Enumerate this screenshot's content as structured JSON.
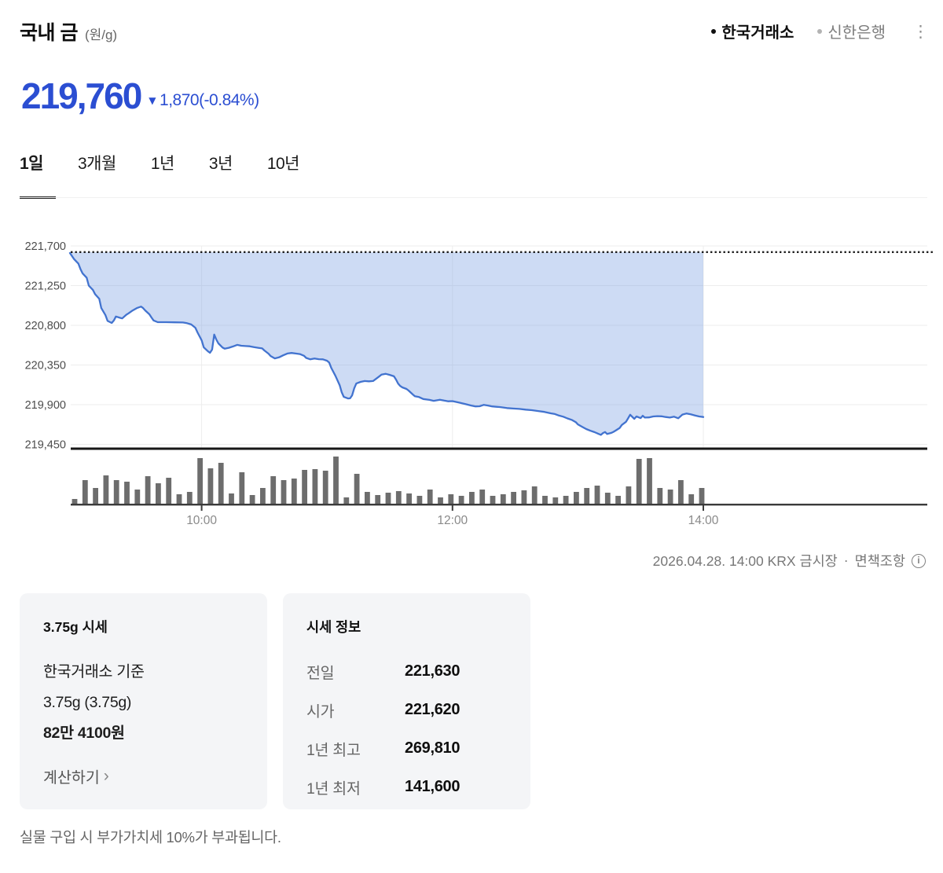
{
  "header": {
    "title": "국내 금",
    "unit": "(원/g)",
    "sources": [
      {
        "label": "한국거래소",
        "active": true
      },
      {
        "label": "신한은행",
        "active": false
      }
    ],
    "menu_icon": "⋮"
  },
  "price": {
    "current": "219,760",
    "change_arrow": "▼",
    "change_text": "1,870(-0.84%)",
    "down_color": "#2b4ed2"
  },
  "period_tabs": [
    {
      "label": "1일",
      "active": true
    },
    {
      "label": "3개월",
      "active": false
    },
    {
      "label": "1년",
      "active": false
    },
    {
      "label": "3년",
      "active": false
    },
    {
      "label": "10년",
      "active": false
    }
  ],
  "chart_meta": {
    "timestamp_line": "2026.04.28. 14:00 KRX 금시장",
    "separator": "·",
    "disclaimer_link": "면책조항",
    "info_icon": "i"
  },
  "chart_data": {
    "type": "area",
    "title": "국내 금 1일 시세 (원/g)",
    "prev_close": 221630,
    "open": 221620,
    "current": 219760,
    "y_ticks": [
      221700,
      221250,
      220800,
      220350,
      219900,
      219450
    ],
    "y_tick_labels": [
      "221,700",
      "221,250",
      "220,800",
      "220,350",
      "219,900",
      "219,450"
    ],
    "x_ticks": [
      {
        "min": 60,
        "label": "10:00"
      },
      {
        "min": 180,
        "label": "12:00"
      },
      {
        "min": 300,
        "label": "14:00"
      }
    ],
    "x_axis_note": "minutes since 09:00, data ends 14:00",
    "colors": {
      "line": "#4273cf",
      "fill": "rgba(131,166,227,0.40)",
      "dotted": "#1f1f1f",
      "grid": "#ececec",
      "vgrid": "#ededed",
      "axis": "#161616",
      "volume": "#6d6d6d",
      "volume_base": "#3a3a3a",
      "x_label": "#8a8a8a",
      "y_label": "#4c4c4c"
    },
    "points": [
      [
        -3,
        221620
      ],
      [
        -1,
        221550
      ],
      [
        1,
        221500
      ],
      [
        2,
        221440
      ],
      [
        3,
        221390
      ],
      [
        5,
        221340
      ],
      [
        6,
        221250
      ],
      [
        8,
        221200
      ],
      [
        9,
        221155
      ],
      [
        11,
        221100
      ],
      [
        12,
        220995
      ],
      [
        14,
        220915
      ],
      [
        15,
        220850
      ],
      [
        17,
        220827
      ],
      [
        18,
        220855
      ],
      [
        19,
        220900
      ],
      [
        21,
        220885
      ],
      [
        22,
        220878
      ],
      [
        24,
        220920
      ],
      [
        25,
        220935
      ],
      [
        27,
        220968
      ],
      [
        29,
        220995
      ],
      [
        31,
        221012
      ],
      [
        32,
        220995
      ],
      [
        33,
        220968
      ],
      [
        35,
        220925
      ],
      [
        36,
        220888
      ],
      [
        37,
        220855
      ],
      [
        39,
        220836
      ],
      [
        43,
        220836
      ],
      [
        47,
        220834
      ],
      [
        51,
        220832
      ],
      [
        53,
        220824
      ],
      [
        55,
        220810
      ],
      [
        57,
        220772
      ],
      [
        58,
        220720
      ],
      [
        60,
        220630
      ],
      [
        61,
        220550
      ],
      [
        63,
        220505
      ],
      [
        64,
        220488
      ],
      [
        65,
        220525
      ],
      [
        66,
        220695
      ],
      [
        67,
        220640
      ],
      [
        68,
        220595
      ],
      [
        70,
        220548
      ],
      [
        71,
        220535
      ],
      [
        73,
        220545
      ],
      [
        75,
        220560
      ],
      [
        77,
        220578
      ],
      [
        79,
        220568
      ],
      [
        81,
        220565
      ],
      [
        83,
        220562
      ],
      [
        85,
        220552
      ],
      [
        87,
        220545
      ],
      [
        89,
        220538
      ],
      [
        90,
        220515
      ],
      [
        92,
        220478
      ],
      [
        93,
        220452
      ],
      [
        95,
        220425
      ],
      [
        97,
        220436
      ],
      [
        99,
        220460
      ],
      [
        101,
        220480
      ],
      [
        103,
        220486
      ],
      [
        105,
        220480
      ],
      [
        107,
        220474
      ],
      [
        109,
        220454
      ],
      [
        110,
        220430
      ],
      [
        112,
        220414
      ],
      [
        114,
        220424
      ],
      [
        116,
        220416
      ],
      [
        118,
        220414
      ],
      [
        120,
        220398
      ],
      [
        121,
        220378
      ],
      [
        122,
        220318
      ],
      [
        124,
        220228
      ],
      [
        126,
        220122
      ],
      [
        127,
        220042
      ],
      [
        128,
        219988
      ],
      [
        130,
        219970
      ],
      [
        131,
        219972
      ],
      [
        132,
        220006
      ],
      [
        133,
        220086
      ],
      [
        134,
        220140
      ],
      [
        136,
        220158
      ],
      [
        138,
        220168
      ],
      [
        140,
        220165
      ],
      [
        142,
        220168
      ],
      [
        143,
        220186
      ],
      [
        145,
        220222
      ],
      [
        146,
        220240
      ],
      [
        148,
        220250
      ],
      [
        150,
        220238
      ],
      [
        152,
        220222
      ],
      [
        153,
        220184
      ],
      [
        154,
        220140
      ],
      [
        155,
        220112
      ],
      [
        156,
        220096
      ],
      [
        158,
        220078
      ],
      [
        159,
        220060
      ],
      [
        161,
        220016
      ],
      [
        162,
        219996
      ],
      [
        164,
        219986
      ],
      [
        166,
        219964
      ],
      [
        169,
        219954
      ],
      [
        171,
        219944
      ],
      [
        174,
        219956
      ],
      [
        176,
        219946
      ],
      [
        178,
        219938
      ],
      [
        180,
        219940
      ],
      [
        183,
        219924
      ],
      [
        186,
        219908
      ],
      [
        189,
        219890
      ],
      [
        191,
        219880
      ],
      [
        193,
        219882
      ],
      [
        195,
        219898
      ],
      [
        197,
        219890
      ],
      [
        199,
        219880
      ],
      [
        201,
        219876
      ],
      [
        203,
        219872
      ],
      [
        206,
        219862
      ],
      [
        209,
        219856
      ],
      [
        212,
        219852
      ],
      [
        215,
        219844
      ],
      [
        218,
        219838
      ],
      [
        221,
        219828
      ],
      [
        224,
        219818
      ],
      [
        227,
        219802
      ],
      [
        229,
        219794
      ],
      [
        231,
        219776
      ],
      [
        233,
        219764
      ],
      [
        235,
        219744
      ],
      [
        237,
        219728
      ],
      [
        239,
        219702
      ],
      [
        240,
        219676
      ],
      [
        242,
        219650
      ],
      [
        244,
        219624
      ],
      [
        246,
        219604
      ],
      [
        248,
        219588
      ],
      [
        250,
        219568
      ],
      [
        251,
        219558
      ],
      [
        252,
        219578
      ],
      [
        253,
        219590
      ],
      [
        254,
        219568
      ],
      [
        256,
        219580
      ],
      [
        257,
        219592
      ],
      [
        258,
        219606
      ],
      [
        260,
        219636
      ],
      [
        261,
        219670
      ],
      [
        263,
        219706
      ],
      [
        264,
        219744
      ],
      [
        265,
        219786
      ],
      [
        266,
        219762
      ],
      [
        267,
        219740
      ],
      [
        268,
        219766
      ],
      [
        270,
        219748
      ],
      [
        271,
        219774
      ],
      [
        272,
        219754
      ],
      [
        274,
        219756
      ],
      [
        276,
        219766
      ],
      [
        278,
        219770
      ],
      [
        280,
        219768
      ],
      [
        282,
        219760
      ],
      [
        284,
        219754
      ],
      [
        286,
        219764
      ],
      [
        288,
        219746
      ],
      [
        290,
        219788
      ],
      [
        292,
        219800
      ],
      [
        294,
        219790
      ],
      [
        296,
        219778
      ],
      [
        298,
        219766
      ],
      [
        300,
        219760
      ]
    ],
    "volume_rel": [
      6,
      30,
      20,
      36,
      30,
      28,
      18,
      35,
      26,
      33,
      12,
      15,
      58,
      45,
      52,
      13,
      40,
      11,
      20,
      35,
      30,
      32,
      43,
      44,
      42,
      60,
      8,
      38,
      15,
      11,
      14,
      16,
      13,
      10,
      18,
      8,
      12,
      10,
      15,
      18,
      10,
      12,
      15,
      17,
      22,
      10,
      8,
      10,
      15,
      20,
      23,
      14,
      10,
      22,
      57,
      58,
      20,
      18,
      30,
      12,
      20
    ]
  },
  "cards": {
    "unit_price": {
      "title": "3.75g 시세",
      "line1": "한국거래소 기준",
      "line2": "3.75g (3.75g)",
      "price_bold": "82만 4100원",
      "link": "계산하기",
      "link_arrow": "›"
    },
    "quote_info": {
      "title": "시세 정보",
      "rows": [
        {
          "label": "전일",
          "value": "221,630"
        },
        {
          "label": "시가",
          "value": "221,620"
        },
        {
          "label": "1년 최고",
          "value": "269,810"
        },
        {
          "label": "1년 최저",
          "value": "141,600"
        }
      ]
    }
  },
  "footnote": "실물 구입 시 부가가치세 10%가 부과됩니다."
}
